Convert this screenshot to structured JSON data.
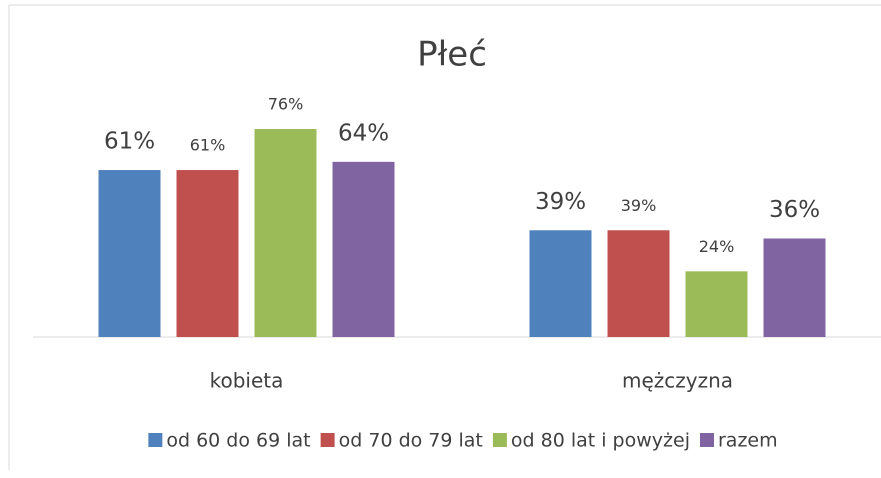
{
  "chart_data": {
    "type": "bar",
    "title": "Płeć",
    "categories": [
      "kobieta",
      "mężczyzna"
    ],
    "series": [
      {
        "name": "od 60 do 69 lat",
        "color": "#4f81bd",
        "values": [
          61,
          39
        ],
        "value_labels": [
          "61%",
          "39%"
        ]
      },
      {
        "name": "od 70 do 79 lat",
        "color": "#c0504d",
        "values": [
          61,
          39
        ],
        "value_labels": [
          "61%",
          "39%"
        ]
      },
      {
        "name": "od 80 lat i powyżej",
        "color": "#9bbb59",
        "values": [
          76,
          24
        ],
        "value_labels": [
          "76%",
          "24%"
        ]
      },
      {
        "name": "razem",
        "color": "#8064a2",
        "values": [
          64,
          36
        ],
        "value_labels": [
          "64%",
          "36%"
        ]
      }
    ],
    "legend": "bottom"
  }
}
